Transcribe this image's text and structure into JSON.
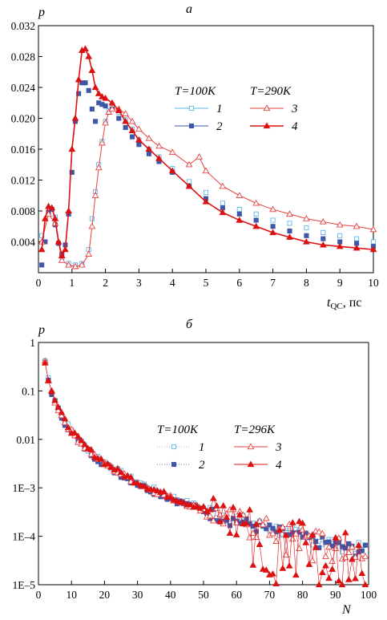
{
  "colors": {
    "light_blue": "#5fb6e6",
    "dark_blue": "#3f57a8",
    "light_red": "#e84040",
    "dark_red": "#dd1111"
  },
  "chart_data": [
    {
      "type": "line",
      "panel_label": "a",
      "ylabel": "p",
      "xlabel_main": "t",
      "xlabel_sub": "QC",
      "xlabel_unit": ", пс",
      "xlim": [
        0,
        10
      ],
      "ylim": [
        0,
        0.032
      ],
      "xticks": [
        0,
        1,
        2,
        3,
        4,
        5,
        6,
        7,
        8,
        9,
        10
      ],
      "yticks": [
        0.004,
        0.008,
        0.012,
        0.016,
        0.02,
        0.024,
        0.028,
        0.032
      ],
      "ytick_labels": [
        "0.004",
        "0.008",
        "0.012",
        "0.016",
        "0.020",
        "0.024",
        "0.028",
        "0.032"
      ],
      "legend": {
        "group1_label": "T=100K",
        "group2_label": "T=290K",
        "placement": "right-center"
      },
      "series": [
        {
          "name": "1",
          "group": "T=100K",
          "color": "light_blue",
          "marker": "square-open",
          "line": false,
          "x": [
            0.1,
            0.3,
            0.5,
            0.7,
            0.9,
            1.1,
            1.3,
            1.5,
            1.6,
            1.7,
            1.8,
            1.9,
            2.0,
            2.1,
            2.2,
            2.4,
            2.6,
            2.8,
            3.0,
            3.3,
            3.6,
            4.0,
            4.5,
            5.0,
            5.5,
            6.0,
            6.5,
            7.0,
            7.5,
            8.0,
            8.5,
            9.0,
            9.5,
            10.0
          ],
          "y": [
            0.0048,
            0.0082,
            0.0072,
            0.002,
            0.0012,
            0.001,
            0.0012,
            0.003,
            0.007,
            0.0105,
            0.014,
            0.017,
            0.0196,
            0.021,
            0.0214,
            0.0208,
            0.0198,
            0.0186,
            0.0172,
            0.016,
            0.015,
            0.0135,
            0.0118,
            0.0104,
            0.009,
            0.0082,
            0.0076,
            0.0068,
            0.0064,
            0.0058,
            0.0052,
            0.0048,
            0.0044,
            0.004
          ]
        },
        {
          "name": "2",
          "group": "T=100K",
          "color": "dark_blue",
          "marker": "square-filled",
          "line": false,
          "x": [
            0.1,
            0.2,
            0.3,
            0.4,
            0.5,
            0.6,
            0.7,
            0.8,
            0.9,
            1.0,
            1.1,
            1.2,
            1.3,
            1.4,
            1.5,
            1.6,
            1.7,
            1.8,
            1.9,
            2.0,
            2.2,
            2.4,
            2.6,
            2.8,
            3.0,
            3.3,
            3.6,
            4.0,
            4.5,
            5.0,
            5.5,
            6.0,
            6.5,
            7.0,
            7.5,
            8.0,
            8.5,
            9.0,
            9.5,
            10.0
          ],
          "y": [
            0.001,
            0.004,
            0.0078,
            0.0082,
            0.0062,
            0.0038,
            0.0024,
            0.0036,
            0.0076,
            0.013,
            0.0196,
            0.0232,
            0.0246,
            0.0246,
            0.0236,
            0.0212,
            0.0196,
            0.022,
            0.0218,
            0.0216,
            0.0212,
            0.02,
            0.0188,
            0.0176,
            0.0166,
            0.0154,
            0.0144,
            0.013,
            0.0112,
            0.0096,
            0.0084,
            0.0076,
            0.0068,
            0.006,
            0.0054,
            0.0048,
            0.0044,
            0.004,
            0.0038,
            0.0034
          ]
        },
        {
          "name": "3",
          "group": "T=290K",
          "color": "light_red",
          "marker": "triangle-open",
          "line": true,
          "x": [
            0.1,
            0.3,
            0.5,
            0.7,
            0.9,
            1.1,
            1.3,
            1.5,
            1.6,
            1.7,
            1.8,
            1.9,
            2.0,
            2.1,
            2.2,
            2.4,
            2.6,
            2.8,
            3.0,
            3.3,
            3.6,
            4.0,
            4.5,
            4.8,
            5.0,
            5.5,
            6.0,
            6.5,
            7.0,
            7.5,
            8.0,
            8.5,
            9.0,
            9.5,
            10.0
          ],
          "y": [
            0.004,
            0.0076,
            0.0064,
            0.0016,
            0.001,
            0.0008,
            0.001,
            0.0024,
            0.006,
            0.01,
            0.0136,
            0.0168,
            0.0194,
            0.0208,
            0.0212,
            0.0212,
            0.0206,
            0.0196,
            0.0186,
            0.0174,
            0.0164,
            0.0156,
            0.014,
            0.015,
            0.0132,
            0.0112,
            0.01,
            0.009,
            0.0082,
            0.0076,
            0.007,
            0.0066,
            0.0062,
            0.006,
            0.0056
          ]
        },
        {
          "name": "4",
          "group": "T=290K",
          "color": "dark_red",
          "marker": "triangle-filled",
          "line": true,
          "x": [
            0.1,
            0.2,
            0.3,
            0.4,
            0.5,
            0.6,
            0.7,
            0.8,
            0.9,
            1.0,
            1.1,
            1.2,
            1.3,
            1.4,
            1.5,
            1.6,
            1.7,
            1.8,
            1.9,
            2.0,
            2.2,
            2.4,
            2.6,
            2.8,
            3.0,
            3.3,
            3.6,
            4.0,
            4.5,
            5.0,
            5.5,
            6.0,
            6.5,
            7.0,
            7.5,
            8.0,
            8.5,
            9.0,
            9.5,
            10.0
          ],
          "y": [
            0.003,
            0.007,
            0.0086,
            0.0084,
            0.007,
            0.004,
            0.0022,
            0.003,
            0.008,
            0.016,
            0.02,
            0.025,
            0.0288,
            0.029,
            0.028,
            0.0262,
            0.024,
            0.0232,
            0.0228,
            0.0226,
            0.022,
            0.021,
            0.0196,
            0.0184,
            0.0172,
            0.016,
            0.0148,
            0.0132,
            0.0112,
            0.0092,
            0.0078,
            0.0068,
            0.006,
            0.0052,
            0.0046,
            0.004,
            0.0036,
            0.0034,
            0.0032,
            0.003
          ]
        }
      ]
    },
    {
      "type": "scatter",
      "panel_label": "б",
      "ylabel": "p",
      "xlabel": "N",
      "xlim": [
        0,
        100
      ],
      "ylim": [
        1e-05,
        1
      ],
      "yscale": "log",
      "xticks": [
        0,
        10,
        20,
        30,
        40,
        50,
        60,
        70,
        80,
        90,
        100
      ],
      "yticks": [
        1,
        0.1,
        0.01,
        0.001,
        0.0001,
        1e-05
      ],
      "ytick_labels": [
        "1",
        "0.1",
        "0.01",
        "1E–3",
        "1E–4",
        "1E–5"
      ],
      "legend": {
        "group1_label": "T=100K",
        "group2_label": "T=296K",
        "placement": "right-center"
      },
      "series": [
        {
          "name": "1",
          "group": "T=100K",
          "color": "light_blue",
          "marker": "square-open",
          "line": false,
          "amplitude": 0.42,
          "decay": 0.42,
          "floor": 5e-05
        },
        {
          "name": "2",
          "group": "T=100K",
          "color": "dark_blue",
          "marker": "square-filled",
          "line": false,
          "amplitude": 0.38,
          "decay": 0.4,
          "floor": 5e-05
        },
        {
          "name": "3",
          "group": "T=296K",
          "color": "light_red",
          "marker": "triangle-open",
          "line": true,
          "amplitude": 0.4,
          "decay": 0.36,
          "floor": 3e-05
        },
        {
          "name": "4",
          "group": "T=296K",
          "color": "dark_red",
          "marker": "triangle-filled",
          "line": true,
          "amplitude": 0.42,
          "decay": 0.27,
          "floor": 1e-05
        }
      ]
    }
  ]
}
